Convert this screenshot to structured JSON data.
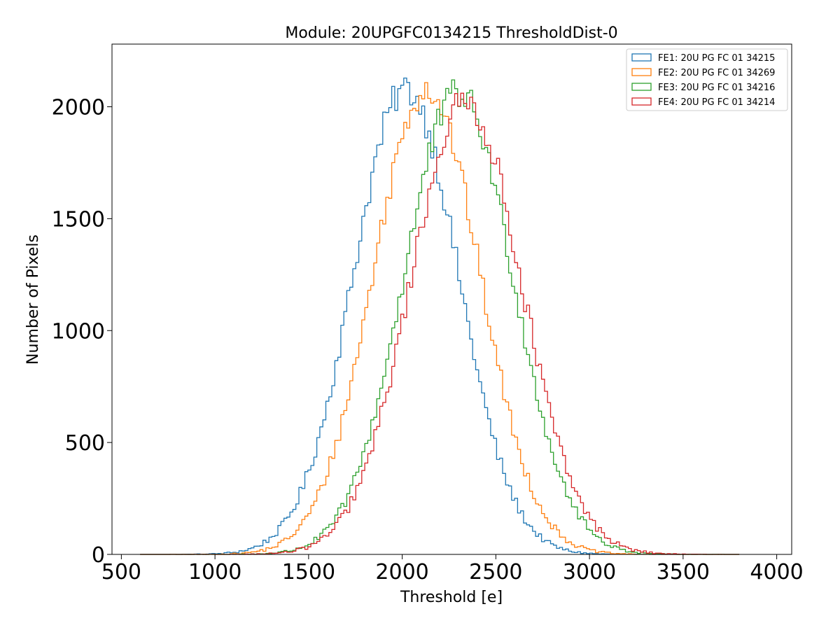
{
  "chart_data": {
    "type": "histogram",
    "title": "Module: 20UPGFC0134215 ThresholdDist-0",
    "xlabel": "Threshold [e]",
    "ylabel": "Number of Pixels",
    "xlim": [
      450,
      4080
    ],
    "ylim": [
      0,
      2280
    ],
    "xticks": [
      500,
      1000,
      1500,
      2000,
      2500,
      3000,
      3500,
      4000
    ],
    "yticks": [
      0,
      500,
      1000,
      1500,
      2000
    ],
    "bin_range": [
      600,
      3800
    ],
    "bin_width": 16,
    "legend_position": "top-right",
    "series": [
      {
        "name": "FE1: 20U PG FC 01 34215",
        "color": "#1f77b4",
        "mean": 2020,
        "sigma": 280,
        "peak": 2080
      },
      {
        "name": "FE2: 20U PG FC 01 34269",
        "color": "#ff7f0e",
        "mean": 2130,
        "sigma": 285,
        "peak": 2080
      },
      {
        "name": "FE3: 20U PG FC 01 34216",
        "color": "#2ca02c",
        "mean": 2300,
        "sigma": 290,
        "peak": 2060
      },
      {
        "name": "FE4: 20U PG FC 01 34214",
        "color": "#d62728",
        "mean": 2340,
        "sigma": 295,
        "peak": 2020
      }
    ]
  }
}
